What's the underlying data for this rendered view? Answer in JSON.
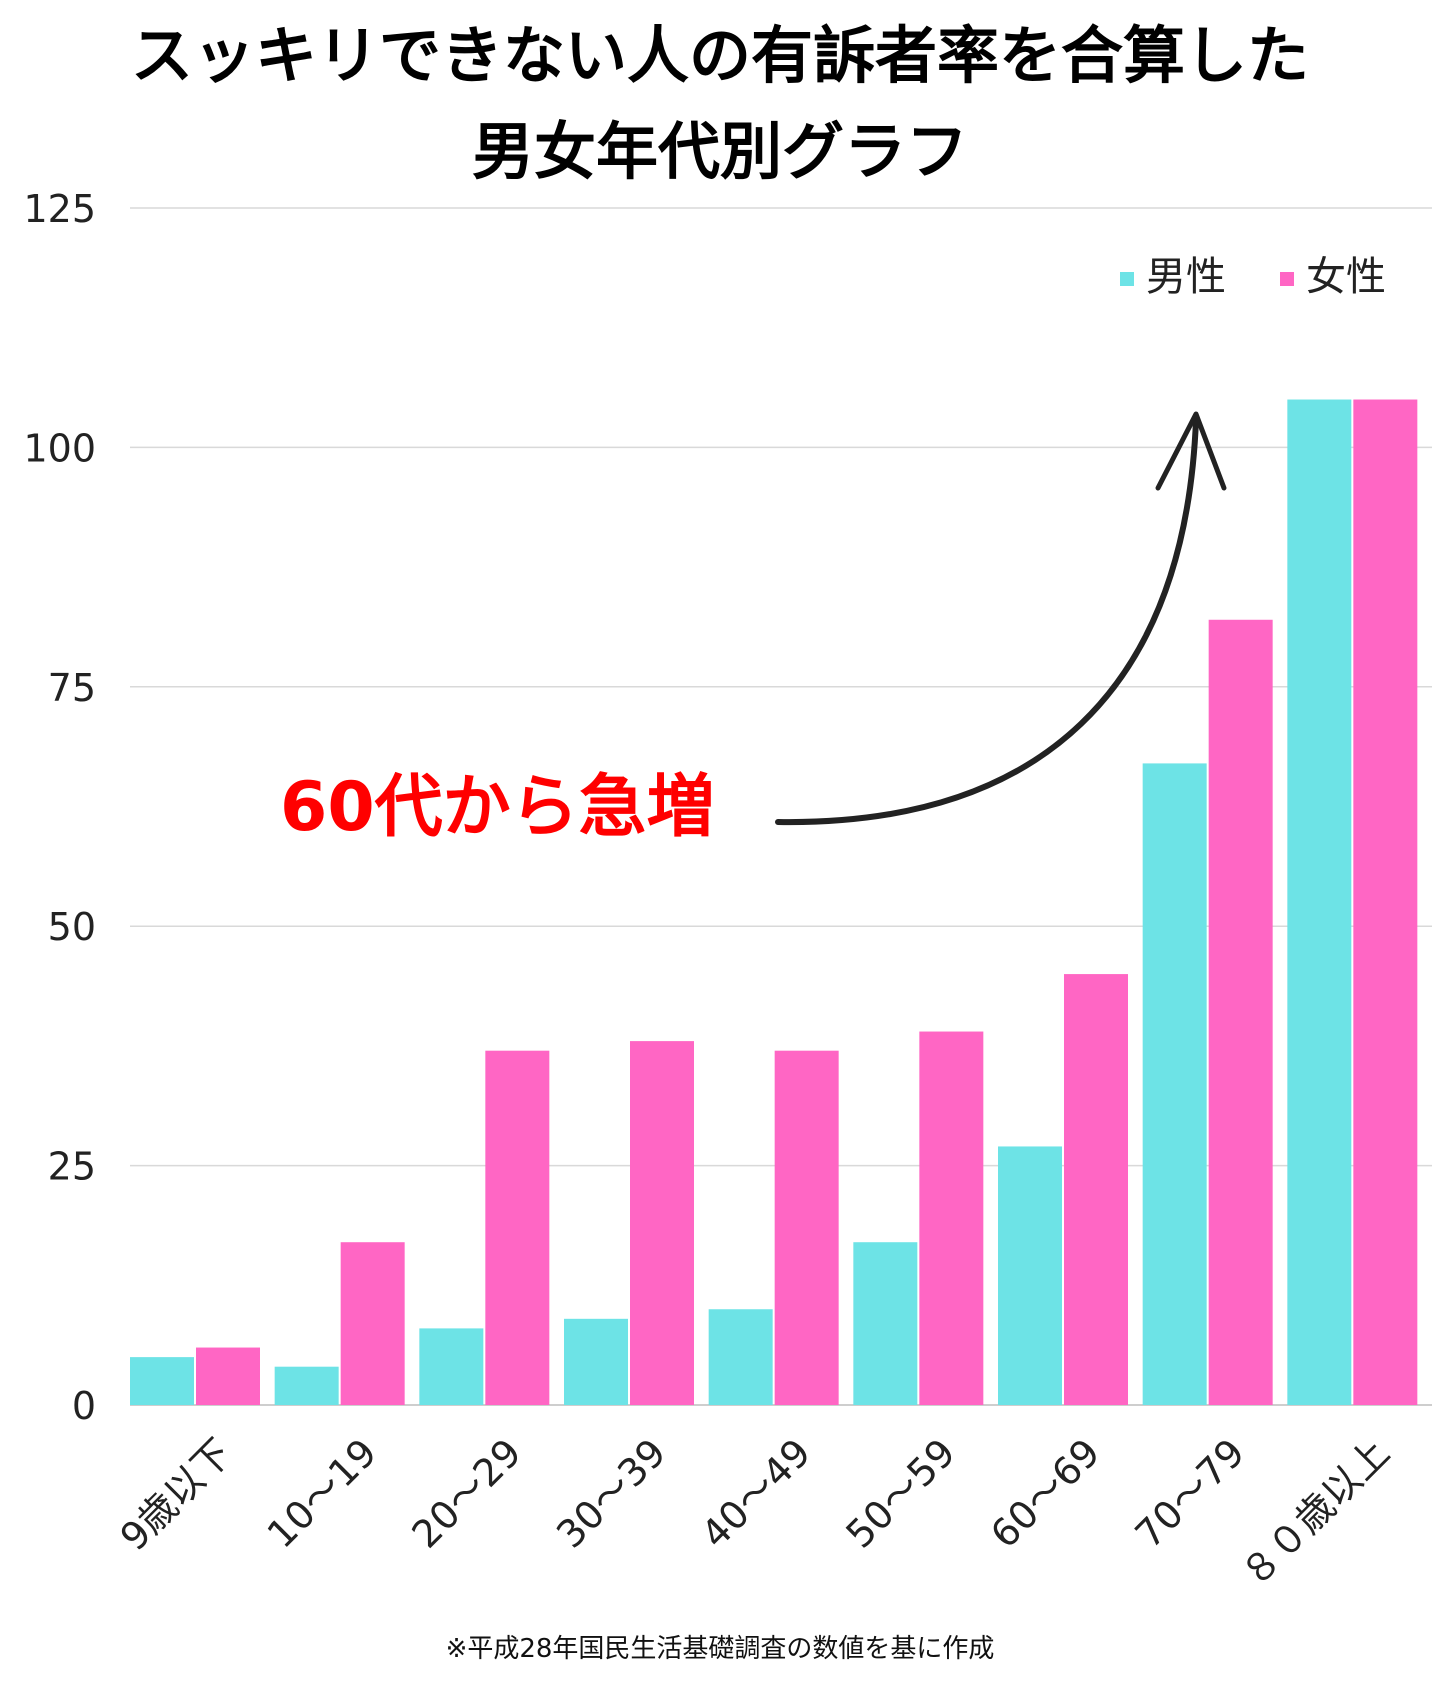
{
  "chart_data": {
    "type": "bar",
    "title_lines": [
      "スッキリできない人の有訴者率を合算した",
      "男女年代別グラフ"
    ],
    "categories": [
      "9歳以下",
      "10〜19",
      "20〜29",
      "30〜39",
      "40〜49",
      "50〜59",
      "60〜69",
      "70〜79",
      "８０歳以上"
    ],
    "series": [
      {
        "name": "男性",
        "color": "#6de3e6",
        "values": [
          5,
          4,
          8,
          9,
          10,
          17,
          27,
          67,
          105
        ]
      },
      {
        "name": "女性",
        "color": "#ff66c4",
        "values": [
          6,
          17,
          37,
          38,
          37,
          39,
          45,
          82,
          105
        ]
      }
    ],
    "ylim": [
      0,
      125
    ],
    "yticks": [
      "0",
      "25",
      "50",
      "75",
      "100",
      "125"
    ],
    "grid": true,
    "legend_position": "top-right",
    "annotation": {
      "text": "60代から急増",
      "color": "#ff0000"
    },
    "footnote": "※平成28年国民生活基礎調査の数値を基に作成"
  }
}
